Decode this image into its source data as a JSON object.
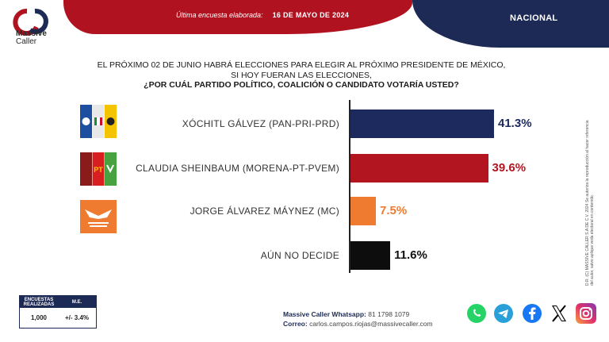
{
  "header": {
    "subtitle": "Última encuesta elaborada:",
    "date": "16 DE MAYO DE 2024",
    "scope": "NACIONAL"
  },
  "logo": {
    "line1": "Massive",
    "line2": "Caller"
  },
  "question": {
    "line1": "EL PRÓXIMO 02 DE JUNIO HABRÁ ELECCIONES PARA ELEGIR AL PRÓXIMO PRESIDENTE DE MÉXICO,",
    "line2": "SI HOY FUERAN LAS ELECCIONES,",
    "line3": "¿POR CUÁL PARTIDO POLÍTICO, COALICIÓN O CANDIDATO VOTARÍA USTED?"
  },
  "chart_data": {
    "type": "bar",
    "orientation": "horizontal",
    "categories": [
      "XÓCHITL GÁLVEZ (PAN-PRI-PRD)",
      "CLAUDIA SHEINBAUM (MORENA-PT-PVEM)",
      "JORGE ÁLVAREZ MÁYNEZ (MC)",
      "AÚN NO DECIDE"
    ],
    "values": [
      41.3,
      39.6,
      7.5,
      11.6
    ],
    "value_labels": [
      "41.3%",
      "39.6%",
      "7.5%",
      "11.6%"
    ],
    "colors": [
      "#1c2a5e",
      "#b31520",
      "#ee7b30",
      "#0d0d0d"
    ],
    "xlim": [
      0,
      50
    ],
    "grid": false
  },
  "party_logos": [
    {
      "name": "pan-pri-prd-icon",
      "labels": [
        "PAN",
        "PRI",
        "PRD"
      ]
    },
    {
      "name": "morena-pt-pvem-icon",
      "labels": [
        "morena",
        "PT",
        "VERDE"
      ]
    },
    {
      "name": "movimiento-ciudadano-icon",
      "labels": [
        "MOVIMIENTO",
        "CIUDADANO"
      ]
    }
  ],
  "stats": {
    "header_left": "ENCUESTAS REALIZADAS",
    "header_right": "M.E.",
    "value_left": "1,000",
    "value_right": "+/- 3.4%"
  },
  "contact": {
    "whatsapp_label": "Massive Caller Whatsapp:",
    "whatsapp_value": "81 1798 1079",
    "email_label": "Correo:",
    "email_value": "carlos.campos.riojas@massivecaller.com"
  },
  "side_note": "D.R. (C) MASSIVE CALLER S.A DE C.V. 2024 Se autoriza la reproducción al hacer referencia del autor, salvo aplique veda electoral en contenido.",
  "social_icons": [
    "whatsapp-icon",
    "telegram-icon",
    "facebook-icon",
    "x-icon",
    "instagram-icon"
  ],
  "colors": {
    "red": "#b01220",
    "navy": "#1c2a55"
  }
}
